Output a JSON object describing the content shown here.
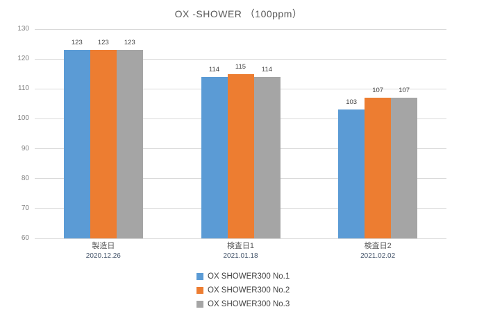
{
  "chart_data": {
    "type": "bar",
    "title": "OX -SHOWER （100ppm）",
    "categories": [
      "製造日",
      "検査日1",
      "検査日2"
    ],
    "category_dates": [
      "2020.12.26",
      "2021.01.18",
      "2021.02.02"
    ],
    "series": [
      {
        "name": "OX SHOWER300 No.1",
        "color": "#5B9BD5",
        "values": [
          123,
          114,
          103
        ]
      },
      {
        "name": "OX SHOWER300 No.2",
        "color": "#ED7D31",
        "values": [
          123,
          115,
          107
        ]
      },
      {
        "name": "OX SHOWER300 No.3",
        "color": "#A5A5A5",
        "values": [
          123,
          114,
          107
        ]
      }
    ],
    "ylim": [
      60,
      130
    ],
    "ytick_step": 10,
    "yticks": [
      "60",
      "70",
      "80",
      "90",
      "100",
      "110",
      "120",
      "130"
    ],
    "grid": true,
    "legend_position": "bottom",
    "bar_labels_shown": true
  },
  "colors": {
    "background": "#FFFFFF",
    "gridline": "#D9D9D9",
    "axis_text": "#808080",
    "value_label_text": "#404040",
    "category_text": "#595959",
    "date_text": "#44546A",
    "title_text": "#595959",
    "legend_text": "#404040"
  }
}
